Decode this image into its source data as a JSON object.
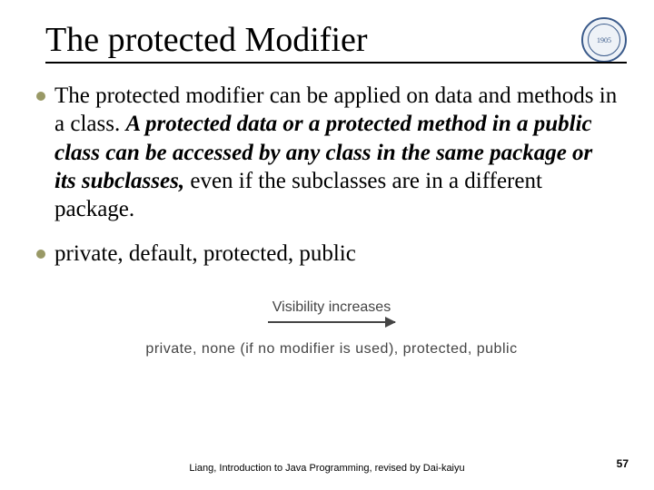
{
  "title": "The protected Modifier",
  "logo": {
    "name": "university-seal-icon",
    "year": "1905"
  },
  "bullets": [
    {
      "pre": "The protected modifier can be applied on data and methods in a class. ",
      "emph": "A protected data or a protected method in a public class can be accessed by any class in the same package or its subclasses,",
      "post": " even if the subclasses are in a different package."
    },
    {
      "pre": "private, default, protected, public",
      "emph": "",
      "post": ""
    }
  ],
  "diagram": {
    "label": "Visibility increases",
    "modifiers_line": "private, none (if no modifier is used), protected, public"
  },
  "footer": {
    "citation": "Liang, Introduction to Java Programming, revised by Dai-kaiyu",
    "page": "57"
  },
  "colors": {
    "bullet": "#999966",
    "text": "#000000",
    "diagram_text": "#444444",
    "logo_border": "#3a5a8a"
  }
}
